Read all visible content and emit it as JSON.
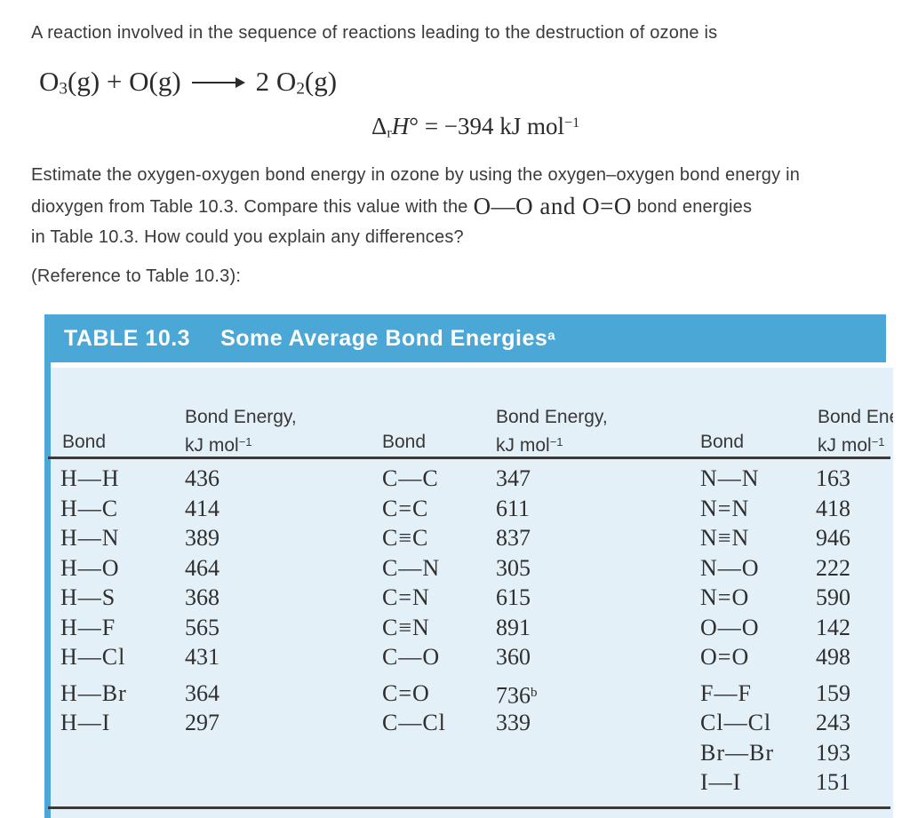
{
  "page": {
    "intro": "A reaction involved in the sequence of reactions leading to the destruction of ozone is",
    "question": {
      "line1": "Estimate the oxygen-oxygen bond energy in ozone by using the oxygen–oxygen bond energy in",
      "line2_pre": "dioxygen from Table 10.3. Compare this value with the",
      "line2_formula": "O—O and O=O",
      "line2_post": "bond energies",
      "line3": "in Table 10.3. How could you explain any differences?"
    },
    "reference": "(Reference to Table 10.3):"
  },
  "equation": {
    "before": [
      {
        "t": "O"
      },
      {
        "t": "3",
        "s": "sub"
      },
      {
        "t": "(g) + O(g)"
      }
    ],
    "after": [
      {
        "t": "2 O"
      },
      {
        "t": "2",
        "s": "sub"
      },
      {
        "t": "(g)"
      }
    ]
  },
  "enthalpy": {
    "segments": [
      {
        "t": "Δ"
      },
      {
        "t": "r",
        "s": "sub"
      },
      {
        "t": "H",
        "i": true
      },
      {
        "t": "° = −394 kJ mol"
      },
      {
        "t": "−1",
        "s": "sup"
      }
    ]
  },
  "table": {
    "title_label": "TABLE 10.3",
    "title_segments": [
      {
        "t": "Some Average Bond Energies"
      },
      {
        "t": "a",
        "s": "sup"
      }
    ],
    "col_header_bond": "Bond",
    "col_header_energy_line1": "Bond Energy,",
    "col_header_energy_line2": [
      {
        "t": "kJ mol"
      },
      {
        "t": "−1",
        "s": "sup"
      }
    ],
    "colors": {
      "header_blue": "#4aa7d6",
      "body_blue": "#e4f0f7",
      "rule": "#3a3a3a"
    },
    "columns": [
      {
        "group1": [
          [
            "H—H",
            "436"
          ],
          [
            "H—C",
            "414"
          ],
          [
            "H—N",
            "389"
          ],
          [
            "H—O",
            "464"
          ],
          [
            "H—S",
            "368"
          ],
          [
            "H—F",
            "565"
          ],
          [
            "H—Cl",
            "431"
          ]
        ],
        "group2": [
          [
            "H—Br",
            "364"
          ],
          [
            "H—I",
            "297"
          ]
        ]
      },
      {
        "group1": [
          [
            "C—C",
            "347"
          ],
          [
            "C=C",
            "611"
          ],
          [
            "C≡C",
            "837"
          ],
          [
            "C—N",
            "305"
          ],
          [
            "C=N",
            "615"
          ],
          [
            "C≡N",
            "891"
          ],
          [
            "C—O",
            "360"
          ]
        ],
        "group2": [
          [
            "C=O",
            "736",
            "b"
          ],
          [
            "C—Cl",
            "339"
          ]
        ]
      },
      {
        "group1": [
          [
            "N—N",
            "163"
          ],
          [
            "N=N",
            "418"
          ],
          [
            "N≡N",
            "946"
          ],
          [
            "N—O",
            "222"
          ],
          [
            "N=O",
            "590"
          ],
          [
            "O—O",
            "142"
          ],
          [
            "O=O",
            "498"
          ]
        ],
        "group2": [
          [
            "F—F",
            "159"
          ],
          [
            "Cl—Cl",
            "243"
          ],
          [
            "Br—Br",
            "193"
          ],
          [
            "I—I",
            "151"
          ]
        ]
      }
    ]
  }
}
